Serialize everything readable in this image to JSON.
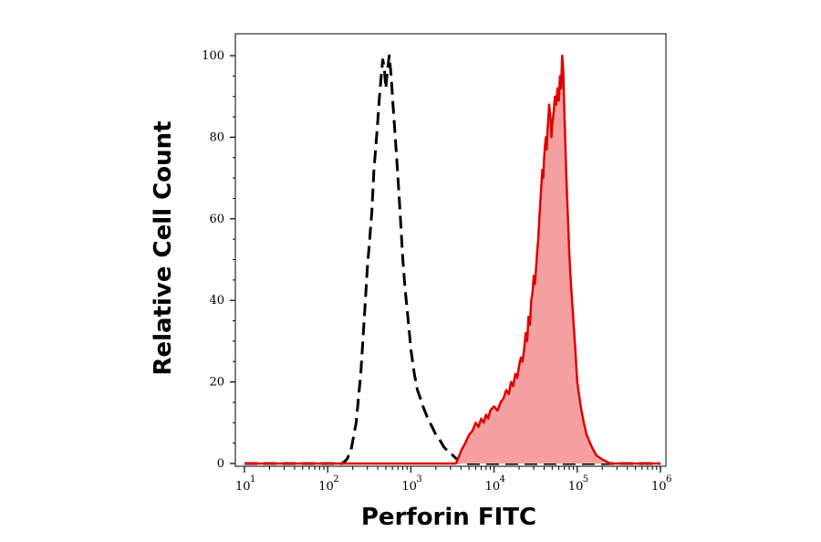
{
  "chart_data": {
    "type": "area",
    "title": "",
    "xlabel": "Perforin FITC",
    "ylabel": "Relative Cell Count",
    "x_scale": "log",
    "xlim": [
      10,
      1000000
    ],
    "ylim": [
      0,
      100
    ],
    "x_ticks": [
      {
        "base": "10",
        "exp": "1",
        "value": 10
      },
      {
        "base": "10",
        "exp": "2",
        "value": 100
      },
      {
        "base": "10",
        "exp": "3",
        "value": 1000
      },
      {
        "base": "10",
        "exp": "4",
        "value": 10000
      },
      {
        "base": "10",
        "exp": "5",
        "value": 100000
      },
      {
        "base": "10",
        "exp": "6",
        "value": 1000000
      }
    ],
    "y_ticks": [
      0,
      20,
      40,
      60,
      80,
      100
    ],
    "grid": false,
    "legend": "none",
    "series": [
      {
        "style": "dashed",
        "color": "#000000",
        "filled": false,
        "points": [
          [
            10,
            0
          ],
          [
            100,
            0
          ],
          [
            150,
            0
          ],
          [
            170,
            1
          ],
          [
            190,
            3
          ],
          [
            220,
            10
          ],
          [
            250,
            22
          ],
          [
            280,
            38
          ],
          [
            300,
            48
          ],
          [
            320,
            55
          ],
          [
            340,
            62
          ],
          [
            360,
            72
          ],
          [
            380,
            78
          ],
          [
            400,
            84
          ],
          [
            420,
            90
          ],
          [
            440,
            95
          ],
          [
            460,
            99
          ],
          [
            480,
            97
          ],
          [
            500,
            92
          ],
          [
            520,
            96
          ],
          [
            550,
            100
          ],
          [
            580,
            95
          ],
          [
            610,
            88
          ],
          [
            640,
            82
          ],
          [
            680,
            74
          ],
          [
            720,
            66
          ],
          [
            760,
            58
          ],
          [
            800,
            50
          ],
          [
            850,
            43
          ],
          [
            900,
            38
          ],
          [
            950,
            33
          ],
          [
            1000,
            28
          ],
          [
            1100,
            22
          ],
          [
            1200,
            18
          ],
          [
            1300,
            16
          ],
          [
            1400,
            14
          ],
          [
            1600,
            11
          ],
          [
            1800,
            9
          ],
          [
            2000,
            7
          ],
          [
            2200,
            6
          ],
          [
            2500,
            4
          ],
          [
            2800,
            3
          ],
          [
            3200,
            2
          ],
          [
            3600,
            1
          ],
          [
            4000,
            0
          ],
          [
            1000000,
            0
          ]
        ]
      },
      {
        "style": "solid",
        "color": "#e00000",
        "fill": "#f4a0a0",
        "filled": true,
        "points": [
          [
            10,
            0
          ],
          [
            3500,
            0
          ],
          [
            4000,
            3
          ],
          [
            4500,
            5
          ],
          [
            5000,
            7
          ],
          [
            5500,
            8
          ],
          [
            6000,
            10
          ],
          [
            6500,
            9
          ],
          [
            7000,
            11
          ],
          [
            7500,
            10
          ],
          [
            8000,
            12
          ],
          [
            8500,
            11
          ],
          [
            9000,
            13
          ],
          [
            10000,
            14
          ],
          [
            11000,
            13
          ],
          [
            12000,
            15
          ],
          [
            13000,
            16
          ],
          [
            14000,
            18
          ],
          [
            15000,
            17
          ],
          [
            16000,
            20
          ],
          [
            17000,
            19
          ],
          [
            18000,
            22
          ],
          [
            19000,
            21
          ],
          [
            20000,
            24
          ],
          [
            21000,
            26
          ],
          [
            22000,
            25
          ],
          [
            23000,
            28
          ],
          [
            24000,
            32
          ],
          [
            25000,
            30
          ],
          [
            26000,
            36
          ],
          [
            27000,
            34
          ],
          [
            28000,
            40
          ],
          [
            29000,
            42
          ],
          [
            30000,
            46
          ],
          [
            31000,
            44
          ],
          [
            32000,
            48
          ],
          [
            33000,
            52
          ],
          [
            34000,
            55
          ],
          [
            35000,
            60
          ],
          [
            36000,
            64
          ],
          [
            37000,
            68
          ],
          [
            38000,
            72
          ],
          [
            39000,
            70
          ],
          [
            40000,
            75
          ],
          [
            41000,
            78
          ],
          [
            42000,
            80
          ],
          [
            43000,
            77
          ],
          [
            44000,
            82
          ],
          [
            45000,
            85
          ],
          [
            46000,
            88
          ],
          [
            47000,
            86
          ],
          [
            48000,
            84
          ],
          [
            49000,
            80
          ],
          [
            50000,
            83
          ],
          [
            52000,
            86
          ],
          [
            54000,
            90
          ],
          [
            56000,
            88
          ],
          [
            58000,
            92
          ],
          [
            60000,
            89
          ],
          [
            62000,
            95
          ],
          [
            64000,
            92
          ],
          [
            66000,
            100
          ],
          [
            68000,
            96
          ],
          [
            70000,
            86
          ],
          [
            72000,
            78
          ],
          [
            74000,
            70
          ],
          [
            76000,
            64
          ],
          [
            78000,
            58
          ],
          [
            80000,
            52
          ],
          [
            84000,
            44
          ],
          [
            88000,
            38
          ],
          [
            92000,
            32
          ],
          [
            96000,
            26
          ],
          [
            100000,
            20
          ],
          [
            110000,
            14
          ],
          [
            120000,
            10
          ],
          [
            130000,
            7
          ],
          [
            150000,
            4
          ],
          [
            170000,
            2
          ],
          [
            200000,
            1
          ],
          [
            250000,
            0
          ],
          [
            1000000,
            0
          ]
        ]
      }
    ]
  }
}
